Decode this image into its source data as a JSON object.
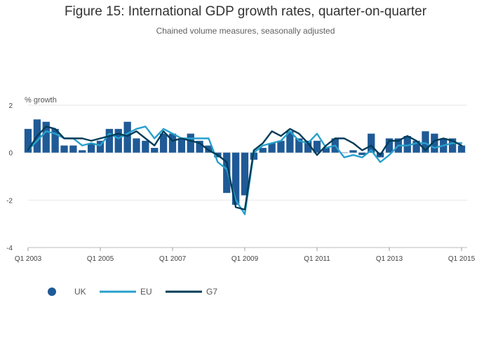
{
  "chart_data": {
    "type": "bar",
    "title": "Figure 15: International GDP growth rates, quarter-on-quarter",
    "subtitle": "Chained volume measures, seasonally adjusted",
    "ylabel": "% growth",
    "xlabel": "",
    "ylim": [
      -4,
      2
    ],
    "y_ticks": [
      2,
      0,
      -2,
      -4
    ],
    "x_tick_labels": [
      "Q1 2003",
      "Q1 2005",
      "Q1 2007",
      "Q1 2009",
      "Q1 2011",
      "Q1 2013",
      "Q1 2015"
    ],
    "grid": true,
    "legend_position": "bottom-left",
    "categories": [
      "Q1 2003",
      "Q2 2003",
      "Q3 2003",
      "Q4 2003",
      "Q1 2004",
      "Q2 2004",
      "Q3 2004",
      "Q4 2004",
      "Q1 2005",
      "Q2 2005",
      "Q3 2005",
      "Q4 2005",
      "Q1 2006",
      "Q2 2006",
      "Q3 2006",
      "Q4 2006",
      "Q1 2007",
      "Q2 2007",
      "Q3 2007",
      "Q4 2007",
      "Q1 2008",
      "Q2 2008",
      "Q3 2008",
      "Q4 2008",
      "Q1 2009",
      "Q2 2009",
      "Q3 2009",
      "Q4 2009",
      "Q1 2010",
      "Q2 2010",
      "Q3 2010",
      "Q4 2010",
      "Q1 2011",
      "Q2 2011",
      "Q3 2011",
      "Q4 2011",
      "Q1 2012",
      "Q2 2012",
      "Q3 2012",
      "Q4 2012",
      "Q1 2013",
      "Q2 2013",
      "Q3 2013",
      "Q4 2013",
      "Q1 2014",
      "Q2 2014",
      "Q3 2014",
      "Q4 2014",
      "Q1 2015"
    ],
    "series": [
      {
        "name": "UK",
        "type": "bar",
        "color": "#1f5a96",
        "values": [
          1.0,
          1.4,
          1.3,
          1.0,
          0.3,
          0.3,
          0.1,
          0.4,
          0.5,
          1.0,
          1.0,
          1.3,
          0.6,
          0.5,
          0.2,
          0.8,
          0.8,
          0.6,
          0.8,
          0.5,
          0.3,
          -0.2,
          -1.7,
          -2.2,
          -1.8,
          -0.3,
          0.2,
          0.4,
          0.5,
          0.9,
          0.6,
          0.5,
          0.5,
          0.2,
          0.6,
          0.0,
          0.1,
          -0.1,
          0.8,
          -0.2,
          0.6,
          0.6,
          0.7,
          0.5,
          0.9,
          0.8,
          0.6,
          0.6,
          0.3
        ]
      },
      {
        "name": "EU",
        "type": "line",
        "color": "#27a0cc",
        "values": [
          0.1,
          0.5,
          0.9,
          0.8,
          0.6,
          0.6,
          0.3,
          0.4,
          0.3,
          0.8,
          0.6,
          0.8,
          1.0,
          1.1,
          0.6,
          1.0,
          0.8,
          0.6,
          0.6,
          0.6,
          0.6,
          -0.4,
          -0.7,
          -2.0,
          -2.6,
          0.0,
          0.3,
          0.4,
          0.5,
          0.9,
          0.5,
          0.4,
          0.8,
          0.2,
          0.3,
          -0.2,
          -0.1,
          -0.2,
          0.1,
          -0.4,
          -0.1,
          0.3,
          0.3,
          0.4,
          0.4,
          0.2,
          0.3,
          0.4,
          0.4
        ]
      },
      {
        "name": "G7",
        "type": "line",
        "color": "#003c57",
        "values": [
          0.1,
          0.7,
          1.1,
          1.0,
          0.6,
          0.6,
          0.6,
          0.5,
          0.6,
          0.7,
          0.8,
          0.7,
          0.9,
          0.6,
          0.3,
          0.9,
          0.5,
          0.6,
          0.5,
          0.4,
          0.1,
          -0.1,
          -0.4,
          -2.3,
          -2.4,
          0.1,
          0.4,
          0.9,
          0.7,
          1.0,
          0.8,
          0.4,
          -0.1,
          0.3,
          0.6,
          0.6,
          0.4,
          0.1,
          0.3,
          -0.1,
          0.5,
          0.5,
          0.7,
          0.5,
          0.1,
          0.5,
          0.6,
          0.5,
          0.3
        ]
      }
    ]
  }
}
